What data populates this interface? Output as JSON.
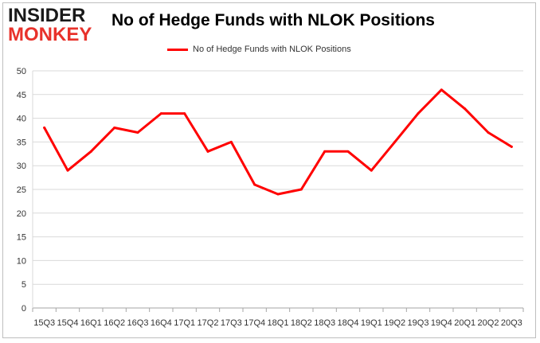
{
  "logo": {
    "line1": "INSIDER",
    "line2": "MONKEY"
  },
  "chart_data": {
    "type": "line",
    "title": "No of Hedge Funds with NLOK Positions",
    "legend": {
      "position": "top-center"
    },
    "grid": true,
    "ylim": [
      0,
      50
    ],
    "yticks": [
      0,
      5,
      10,
      15,
      20,
      25,
      30,
      35,
      40,
      45,
      50
    ],
    "categories": [
      "15Q3",
      "15Q4",
      "16Q1",
      "16Q2",
      "16Q3",
      "16Q4",
      "17Q1",
      "17Q2",
      "17Q3",
      "17Q4",
      "18Q1",
      "18Q2",
      "18Q3",
      "18Q4",
      "19Q1",
      "19Q2",
      "19Q3",
      "19Q4",
      "20Q1",
      "20Q2",
      "20Q3"
    ],
    "series": [
      {
        "name": "No of Hedge Funds with NLOK Positions",
        "color": "#ff0000",
        "values": [
          38,
          29,
          33,
          38,
          37,
          41,
          41,
          33,
          35,
          26,
          24,
          25,
          33,
          33,
          29,
          35,
          41,
          46,
          42,
          37,
          34
        ]
      }
    ]
  }
}
